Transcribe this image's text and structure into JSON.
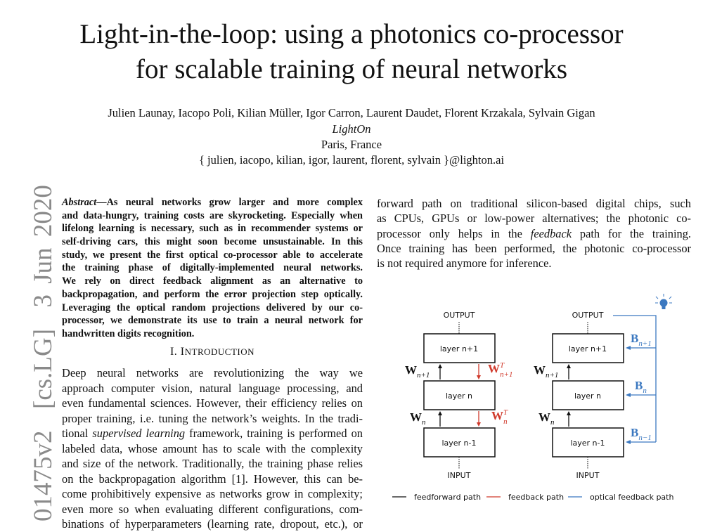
{
  "paper": {
    "title_line1": "Light-in-the-loop: using a photonics co-processor",
    "title_line2": "for scalable training of neural networks",
    "authors": "Julien Launay, Iacopo Poli, Kilian Müller, Igor Carron, Laurent Daudet, Florent Krzakala, Sylvain Gigan",
    "affiliation": "LightOn",
    "location": "Paris, France",
    "emails": "{ julien, iacopo, kilian, igor, laurent, florent, sylvain }@lighton.ai",
    "arxiv_stamp": "01475v2  [cs.LG]  3 Jun 2020"
  },
  "abstract_lines": [
    [
      [
        "Abstract",
        true
      ],
      [
        "—As neural networks grow larger and more complex",
        false
      ]
    ],
    [
      [
        "and data-hungry, training costs are skyrocketing. Especially when",
        false
      ]
    ],
    [
      [
        "lifelong learning is necessary, such as in recommender systems or",
        false
      ]
    ],
    [
      [
        "self-driving cars, this might soon become unsustainable. In this",
        false
      ]
    ],
    [
      [
        "study, we present the first optical co-processor able to accelerate",
        false
      ]
    ],
    [
      [
        "the training phase of digitally-implemented neural networks.",
        false
      ]
    ],
    [
      [
        "We rely on direct feedback alignment as an alternative to",
        false
      ]
    ],
    [
      [
        "backpropagation, and perform the error projection step optically.",
        false
      ]
    ],
    [
      [
        "Leveraging the optical random projections delivered by our co-",
        false
      ]
    ],
    [
      [
        "processor, we demonstrate its use to train a neural network for",
        false
      ]
    ],
    [
      [
        "handwritten digits recognition.",
        false
      ]
    ]
  ],
  "section": {
    "number": "I. ",
    "initial": "I",
    "rest": "NTRODUCTION"
  },
  "intro_lines": [
    [
      [
        "Deep neural networks are revolutionizing the way we",
        false
      ]
    ],
    [
      [
        "approach computer vision, natural language processing, and",
        false
      ]
    ],
    [
      [
        "even fundamental sciences. However, their efficiency relies on",
        false
      ]
    ],
    [
      [
        "proper training, i.e. tuning the network’s weights. In the tradi-",
        false
      ]
    ],
    [
      [
        "tional ",
        false
      ],
      [
        "supervised learning",
        true
      ],
      [
        " framework, training is performed on",
        false
      ]
    ],
    [
      [
        "labeled data, whose amount has to scale with the complexity",
        false
      ]
    ],
    [
      [
        "and size of the network. Traditionally, the training phase relies",
        false
      ]
    ],
    [
      [
        "on the backpropagation algorithm [1]. However, this can be-",
        false
      ]
    ],
    [
      [
        "come prohibitively expensive as networks grow in complexity;",
        false
      ]
    ],
    [
      [
        "even more so when evaluating different configurations, com-",
        false
      ]
    ],
    [
      [
        "binations of hyperparameters (learning rate, dropout, etc.), or",
        false
      ]
    ]
  ],
  "right_lines": [
    [
      [
        "forward path on traditional silicon-based digital chips, such",
        false
      ]
    ],
    [
      [
        "as CPUs, GPUs or low-power alternatives; the photonic co-",
        false
      ]
    ],
    [
      [
        "processor only helps in the ",
        false
      ],
      [
        "feedback",
        true
      ],
      [
        " path for the training.",
        false
      ]
    ],
    [
      [
        "Once training has been performed, the photonic co-processor",
        false
      ]
    ],
    [
      [
        "is not required anymore for inference.",
        false
      ]
    ]
  ],
  "figure": {
    "output": "OUTPUT",
    "input": "INPUT",
    "layers": [
      "layer n+1",
      "layer n",
      "layer n-1"
    ],
    "W_upper": {
      "base": "W",
      "sub": "n+1"
    },
    "W_lower": {
      "base": "W",
      "sub": "n"
    },
    "WT_upper": {
      "base": "W",
      "sup": "T",
      "sub": "n+1"
    },
    "WT_lower": {
      "base": "W",
      "sup": "T",
      "sub": "n"
    },
    "B": [
      {
        "base": "B",
        "sub": "n+1"
      },
      {
        "base": "B",
        "sub": "n"
      },
      {
        "base": "B",
        "sub": "n−1"
      }
    ],
    "legend": [
      "feedforward path",
      "feedback path",
      "optical feedback path"
    ],
    "colors": {
      "feedforward": "#111111",
      "feedback": "#d03a2c",
      "optical": "#3b78c0"
    }
  }
}
